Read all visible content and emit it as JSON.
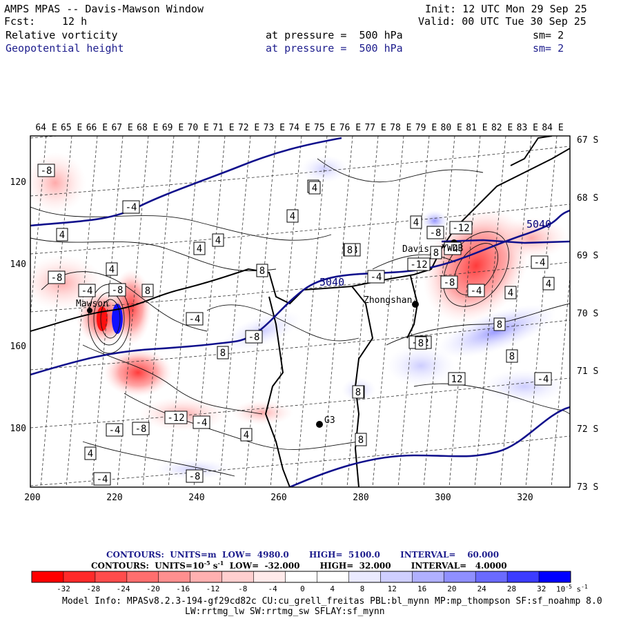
{
  "header": {
    "title": "AMPS MPAS -- Davis-Mawson Window",
    "fcst_label": "Fcst:",
    "fcst_value": "12 h",
    "init": "Init: 12 UTC Mon 29 Sep 25",
    "valid": "Valid: 00 UTC Tue 30 Sep 25",
    "field1": "Relative vorticity",
    "field1_level": "at pressure =  500 hPa",
    "field1_sm": "sm= 2",
    "field2": "Geopotential height",
    "field2_level": "at pressure =  500 hPa",
    "field2_sm": "sm= 2"
  },
  "map": {
    "top_lon_labels": [
      "64 E",
      "65 E",
      "66 E",
      "67 E",
      "68 E",
      "69 E",
      "70 E",
      "71 E",
      "72 E",
      "73 E",
      "74 E",
      "75 E",
      "76 E",
      "77 E",
      "78 E",
      "79 E",
      "80 E",
      "81 E",
      "82 E",
      "83 E",
      "84 E"
    ],
    "right_lat_labels": [
      "67 S",
      "68 S",
      "69 S",
      "70 S",
      "71 S",
      "72 S",
      "73 S"
    ],
    "left_y_labels": [
      "120",
      "140",
      "160",
      "180"
    ],
    "bottom_x_labels": [
      "200",
      "220",
      "240",
      "260",
      "280",
      "300",
      "320"
    ],
    "stations": {
      "mawson": "Mawson",
      "davis": "Davis",
      "ywdb": "YWDB",
      "zhongshan": "Zhongshan",
      "g3": "G3"
    },
    "height_labels": [
      "5040",
      "5040"
    ],
    "vort_labels": [
      "-8",
      "-4",
      "4",
      "4",
      "4",
      "4",
      "4",
      "-4",
      "-8",
      "8",
      "-4",
      "8",
      "-8",
      "-8",
      "-4",
      "4",
      "8",
      "4",
      "-8",
      "-12",
      "-4",
      "-12",
      "-8",
      "-4",
      "4",
      "4",
      "-4",
      "8",
      "8",
      "8",
      "-8",
      "-12",
      "8",
      "12",
      "4",
      "8",
      "-4",
      "4",
      "-4",
      "-8",
      "-12",
      "-8",
      "-4",
      "-4",
      "4",
      "8",
      "4",
      "8"
    ]
  },
  "footer": {
    "contour1_label": "CONTOURS:",
    "contour1_units": "UNITS=m",
    "contour1_low": "LOW=  4980.0",
    "contour1_high": "HIGH=  5100.0",
    "contour1_interval": "INTERVAL=    60.000",
    "contour2_label": "CONTOURS:",
    "contour2_units": "UNITS=10",
    "contour2_units_exp": "-5",
    "contour2_units_tail": " s",
    "contour2_units_tail_exp": "-1",
    "contour2_low": "LOW=  -32.000",
    "contour2_high": "HIGH=  32.000",
    "contour2_interval": "INTERVAL=   4.0000",
    "colorbar_ticks": [
      "-32",
      "-28",
      "-24",
      "-20",
      "-16",
      "-12",
      "-8",
      "-4",
      "0",
      "4",
      "8",
      "12",
      "16",
      "20",
      "24",
      "28",
      "32"
    ],
    "colorbar_colors": [
      "#ff0000",
      "#ff2a2a",
      "#ff4c4c",
      "#ff6e6e",
      "#ff8f8f",
      "#ffb0b0",
      "#ffcfcf",
      "#ffeaea",
      "#ffffff",
      "#ffffff",
      "#eaeaff",
      "#cfcfff",
      "#b0b0ff",
      "#8f8fff",
      "#6a6aff",
      "#3c3cff",
      "#0000ff"
    ],
    "colorbar_unit": "10",
    "colorbar_unit_exp": "-5",
    "colorbar_unit_tail": " s",
    "colorbar_unit_tail_exp": "-1",
    "model_info_1": "Model Info: MPASv8.2.3-194-gf29cd82c CU:cu_grell_freitas PBL:bl_mynn MP:mp_thompson SF:sf_noahmp 8.0",
    "model_info_2": "LW:rrtmg_lw SW:rrtmg_sw SFLAY:sf_mynn"
  }
}
